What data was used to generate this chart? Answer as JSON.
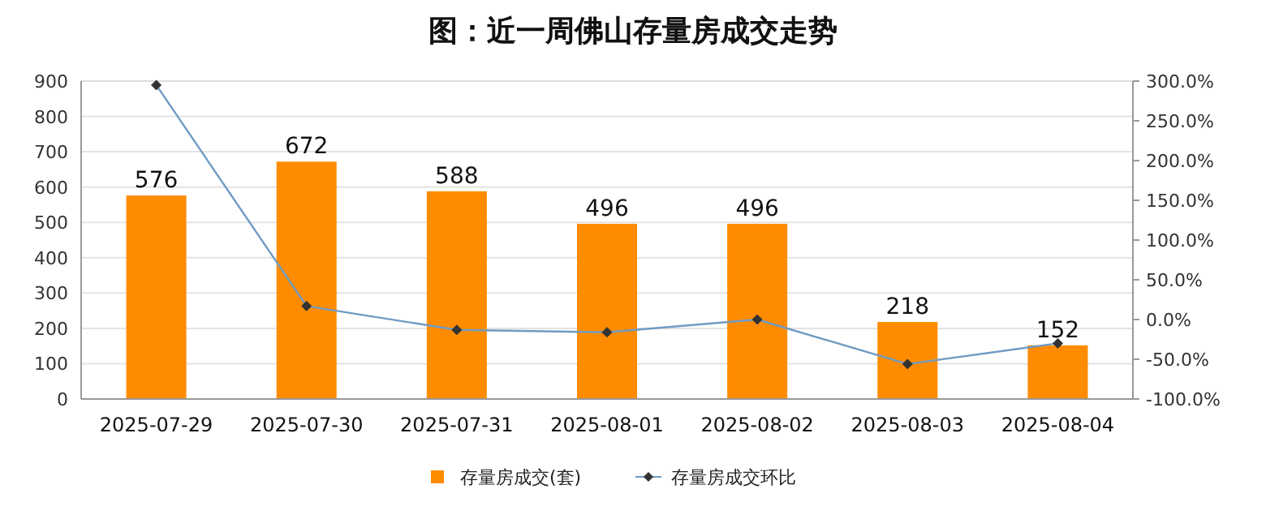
{
  "chart_data": {
    "type": "bar",
    "title": "图：近一周佛山存量房成交走势",
    "categories": [
      "2025-07-29",
      "2025-07-30",
      "2025-07-31",
      "2025-08-01",
      "2025-08-02",
      "2025-08-03",
      "2025-08-04"
    ],
    "series": [
      {
        "name": "存量房成交(套)",
        "color": "#ff8c00",
        "values": [
          576,
          672,
          588,
          496,
          496,
          218,
          152
        ],
        "data_labels": true
      },
      {
        "name": "存量房成交环比",
        "type": "line",
        "axis": "y2",
        "color": "#6f9bc4",
        "marker": "diamond",
        "values": [
          295,
          17,
          -13,
          -16,
          0,
          -56,
          -30
        ]
      }
    ],
    "ylim": [
      0,
      900
    ],
    "yticks": [
      0,
      100,
      200,
      300,
      400,
      500,
      600,
      700,
      800,
      900
    ],
    "y2lim": [
      -100,
      300
    ],
    "y2ticks": [
      {
        "value": -100,
        "label": "-100.0%"
      },
      {
        "value": -50,
        "label": "-50.0%"
      },
      {
        "value": 0,
        "label": "0.0%"
      },
      {
        "value": 50,
        "label": "50.0%"
      },
      {
        "value": 100,
        "label": "100.0%"
      },
      {
        "value": 150,
        "label": "150.0%"
      },
      {
        "value": 200,
        "label": "200.0%"
      },
      {
        "value": 250,
        "label": "250.0%"
      },
      {
        "value": 300,
        "label": "300.0%"
      }
    ],
    "grid": "y",
    "legend": "bottom"
  }
}
